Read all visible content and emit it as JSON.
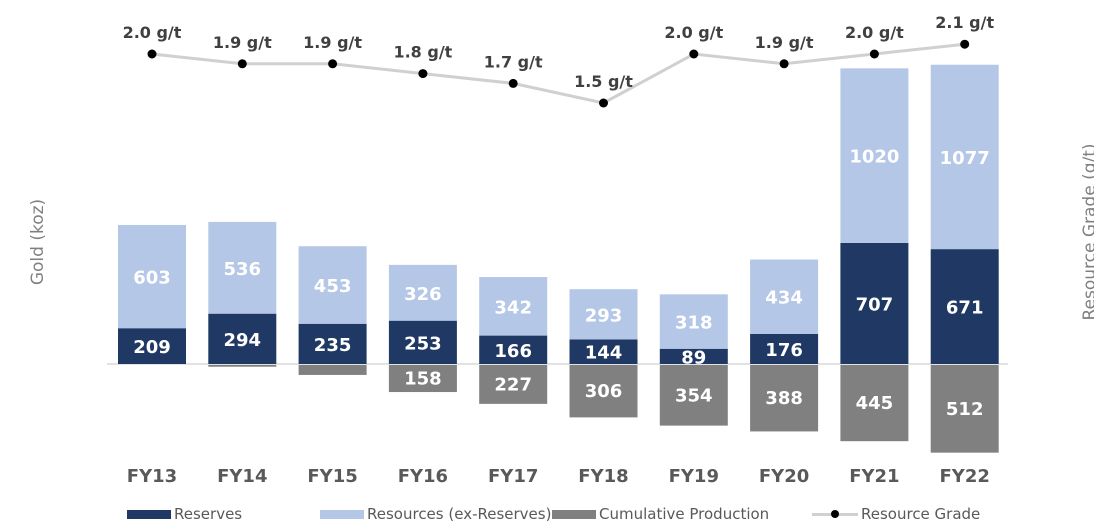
{
  "chart_data": {
    "type": "bar",
    "categories": [
      "FY13",
      "FY14",
      "FY15",
      "FY16",
      "FY17",
      "FY18",
      "FY19",
      "FY20",
      "FY21",
      "FY22"
    ],
    "series": [
      {
        "name": "Reserves",
        "values": [
          209,
          294,
          235,
          253,
          166,
          144,
          89,
          176,
          707,
          671
        ],
        "color": "#203864"
      },
      {
        "name": "Resources (ex-Reserves)",
        "values": [
          603,
          536,
          453,
          326,
          342,
          293,
          318,
          434,
          1020,
          1077
        ],
        "color": "#b4c7e7"
      },
      {
        "name": "Cumulative Production",
        "values": [
          0,
          10,
          58,
          158,
          227,
          306,
          354,
          388,
          445,
          512
        ],
        "labels": [
          "",
          "",
          "",
          "158",
          "227",
          "306",
          "354",
          "388",
          "445",
          "512"
        ],
        "color": "#808080"
      },
      {
        "name": "Resource Grade",
        "type": "line",
        "values": [
          2.0,
          1.9,
          1.9,
          1.8,
          1.7,
          1.5,
          2.0,
          1.9,
          2.0,
          2.1
        ],
        "labels": [
          "2.0 g/t",
          "1.9 g/t",
          "1.9 g/t",
          "1.8 g/t",
          "1.7 g/t",
          "1.5 g/t",
          "2.0 g/t",
          "1.9 g/t",
          "2.0 g/t",
          "2.1 g/t"
        ],
        "color": "#d0d0d0",
        "marker_color": "#000000"
      }
    ],
    "ylabel": "Gold (koz)",
    "y2label": "Resource Grade (g/t)",
    "legend_position": "bottom"
  }
}
